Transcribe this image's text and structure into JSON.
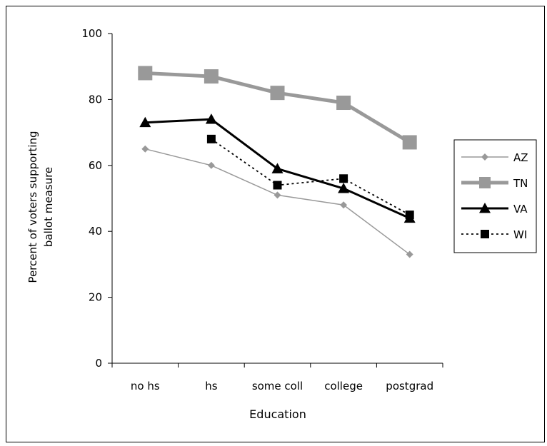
{
  "chart_data": {
    "type": "line",
    "title": "",
    "xlabel": "Education",
    "ylabel_lines": [
      "Percent of voters supporting",
      "ballot measure"
    ],
    "categories": [
      "no hs",
      "hs",
      "some coll",
      "college",
      "postgrad"
    ],
    "ylim": [
      0,
      100
    ],
    "yticks": [
      0,
      20,
      40,
      60,
      80,
      100
    ],
    "grid": false,
    "legend_position": "right",
    "series": [
      {
        "name": "AZ",
        "values": [
          65,
          60,
          51,
          48,
          33
        ],
        "color": "#999999",
        "marker": "diamond",
        "dash": "solid"
      },
      {
        "name": "TN",
        "values": [
          88,
          87,
          82,
          79,
          67
        ],
        "color": "#999999",
        "marker": "square",
        "dash": "solid"
      },
      {
        "name": "VA",
        "values": [
          73,
          74,
          59,
          53,
          44
        ],
        "color": "#000000",
        "marker": "triangle",
        "dash": "solid"
      },
      {
        "name": "WI",
        "values": [
          null,
          68,
          54,
          56,
          45
        ],
        "color": "#000000",
        "marker": "square",
        "dash": "dotted"
      }
    ]
  }
}
